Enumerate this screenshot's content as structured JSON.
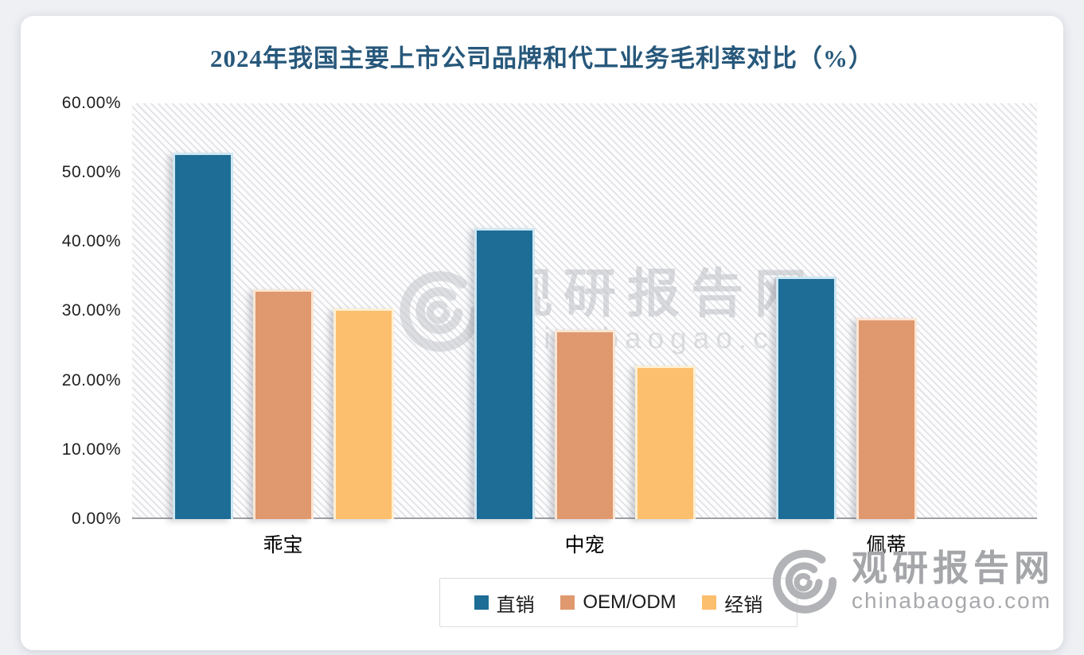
{
  "title": "2024年我国主要上市公司品牌和代工业务毛利率对比（%）",
  "title_color": "#27587B",
  "chart_data": {
    "type": "bar",
    "title": "2024年我国主要上市公司品牌和代工业务毛利率对比（%）",
    "categories": [
      "乖宝",
      "中宠",
      "佩蒂"
    ],
    "series": [
      {
        "name": "直销",
        "color": "#1E6D96",
        "edge": "#CFE7F3",
        "values": [
          52.9,
          42.0,
          35.0
        ]
      },
      {
        "name": "OEM/ODM",
        "color": "#E0986F",
        "edge": "#FBE6D4",
        "values": [
          33.1,
          27.3,
          29.0
        ]
      },
      {
        "name": "经销",
        "color": "#FCBF6E",
        "edge": "#FDEFD2",
        "values": [
          30.4,
          22.1,
          null
        ]
      }
    ],
    "xlabel": "",
    "ylabel": "",
    "ylim": [
      0,
      60
    ],
    "ytick_step": 10,
    "yticks": [
      "60.00%",
      "50.00%",
      "40.00%",
      "30.00%",
      "20.00%",
      "10.00%",
      "0.00%"
    ],
    "grid": false,
    "plot_background": "diagonal-hatch",
    "legend_position": "bottom",
    "axis_line_color": "#9FA0A4"
  },
  "watermark_center": {
    "brand": "观研报告网",
    "domain": "chinabaogao.com"
  },
  "watermark_corner": {
    "brand": "观研报告网",
    "domain": "chinabaogao.com"
  }
}
